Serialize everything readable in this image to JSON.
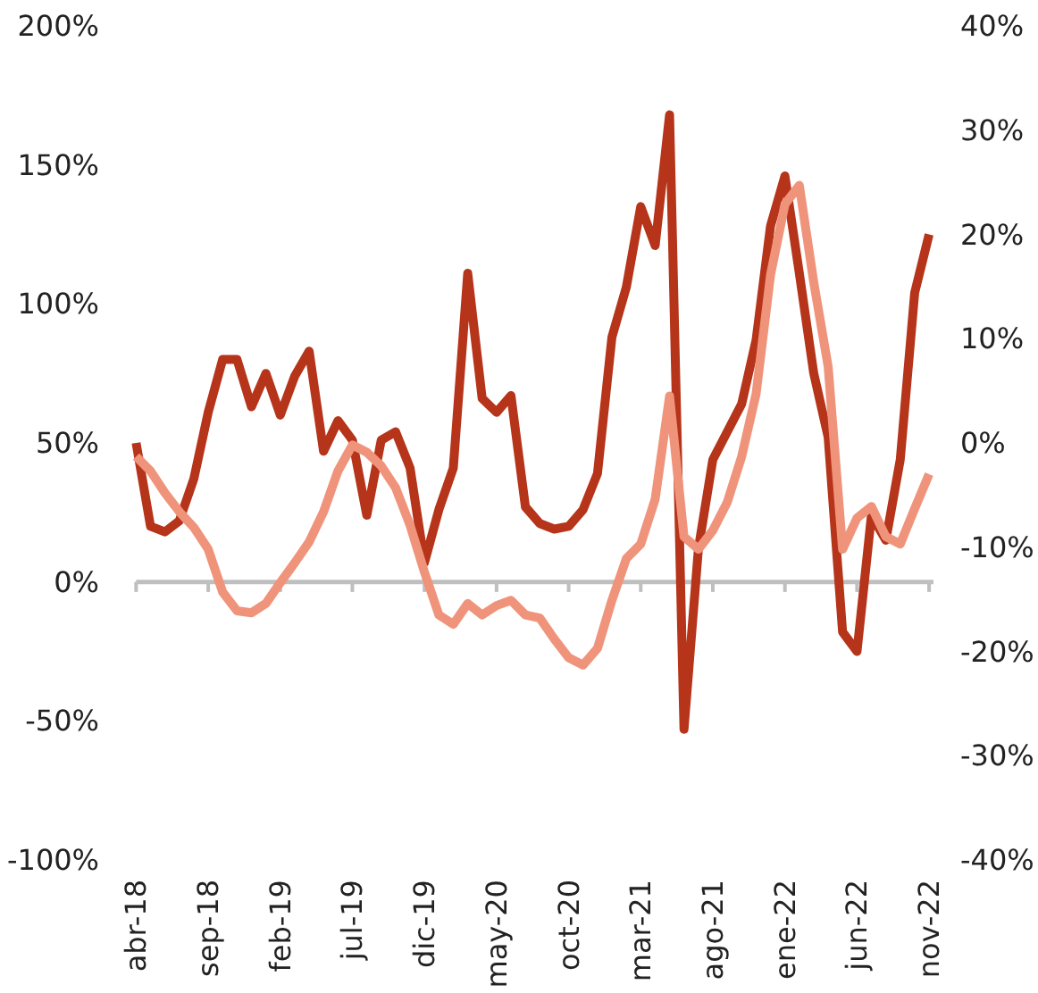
{
  "chart_data": {
    "type": "line",
    "categories": [
      "abr-18",
      null,
      null,
      null,
      null,
      "sep-18",
      null,
      null,
      null,
      null,
      "feb-19",
      null,
      null,
      null,
      null,
      "jul-19",
      null,
      null,
      null,
      null,
      "dic-19",
      null,
      null,
      null,
      null,
      "may-20",
      null,
      null,
      null,
      null,
      "oct-20",
      null,
      null,
      null,
      null,
      "mar-21",
      null,
      null,
      null,
      null,
      "ago-21",
      null,
      null,
      null,
      null,
      "ene-22",
      null,
      null,
      null,
      null,
      "jun-22",
      null,
      null,
      null,
      null,
      "nov-22"
    ],
    "series": [
      {
        "color": "#b5341a",
        "values": [
          50,
          20,
          18,
          22,
          37,
          61,
          80,
          80,
          63,
          75,
          60,
          74,
          83,
          47,
          58,
          51,
          24,
          51,
          54,
          41,
          7,
          26,
          41,
          111,
          66,
          61,
          67,
          27,
          21,
          19,
          20,
          26,
          39,
          88,
          106,
          135,
          121,
          168,
          -53,
          12,
          44,
          54,
          64,
          87,
          128,
          146,
          111,
          75,
          52,
          -18,
          -25,
          24,
          15,
          44,
          104,
          125
        ]
      },
      {
        "color": "#f0937b",
        "axis": "y2",
        "values": [
          -1.3,
          -2.7,
          -4.8,
          -6.6,
          -8.1,
          -10.2,
          -14.3,
          -16.1,
          -16.3,
          -15.4,
          -13.4,
          -11.5,
          -9.5,
          -6.6,
          -2.7,
          -0.2,
          -0.9,
          -2.2,
          -4.3,
          -7.9,
          -12.4,
          -16.5,
          -17.4,
          -15.4,
          -16.5,
          -15.6,
          -15.1,
          -16.5,
          -16.8,
          -18.8,
          -20.6,
          -21.3,
          -19.7,
          -15.1,
          -11.1,
          -9.7,
          -5.4,
          4.5,
          -9.0,
          -10.2,
          -8.4,
          -5.7,
          -1.3,
          4.7,
          16.1,
          22.9,
          24.7,
          15.4,
          7.3,
          -10.2,
          -7.2,
          -6.1,
          -9.0,
          -9.7,
          -6.3,
          -3.0
        ]
      }
    ],
    "ylim": [
      -100,
      200
    ],
    "yticks": [
      {
        "value": -100,
        "label": "-100%"
      },
      {
        "value": -50,
        "label": "-50%"
      },
      {
        "value": 0,
        "label": "0%"
      },
      {
        "value": 50,
        "label": "50%"
      },
      {
        "value": 100,
        "label": "100%"
      },
      {
        "value": 150,
        "label": "150%"
      },
      {
        "value": 200,
        "label": "200%"
      }
    ],
    "y2lim": [
      -40,
      40
    ],
    "y2ticks": [
      {
        "value": -40,
        "label": "-40%"
      },
      {
        "value": -30,
        "label": "-30%"
      },
      {
        "value": -20,
        "label": "-20%"
      },
      {
        "value": -10,
        "label": "-10%"
      },
      {
        "value": 0,
        "label": "0%"
      },
      {
        "value": 10,
        "label": "10%"
      },
      {
        "value": 20,
        "label": "20%"
      },
      {
        "value": 30,
        "label": "30%"
      },
      {
        "value": 40,
        "label": "40%"
      }
    ],
    "marker": "none",
    "line_style": "solid"
  }
}
